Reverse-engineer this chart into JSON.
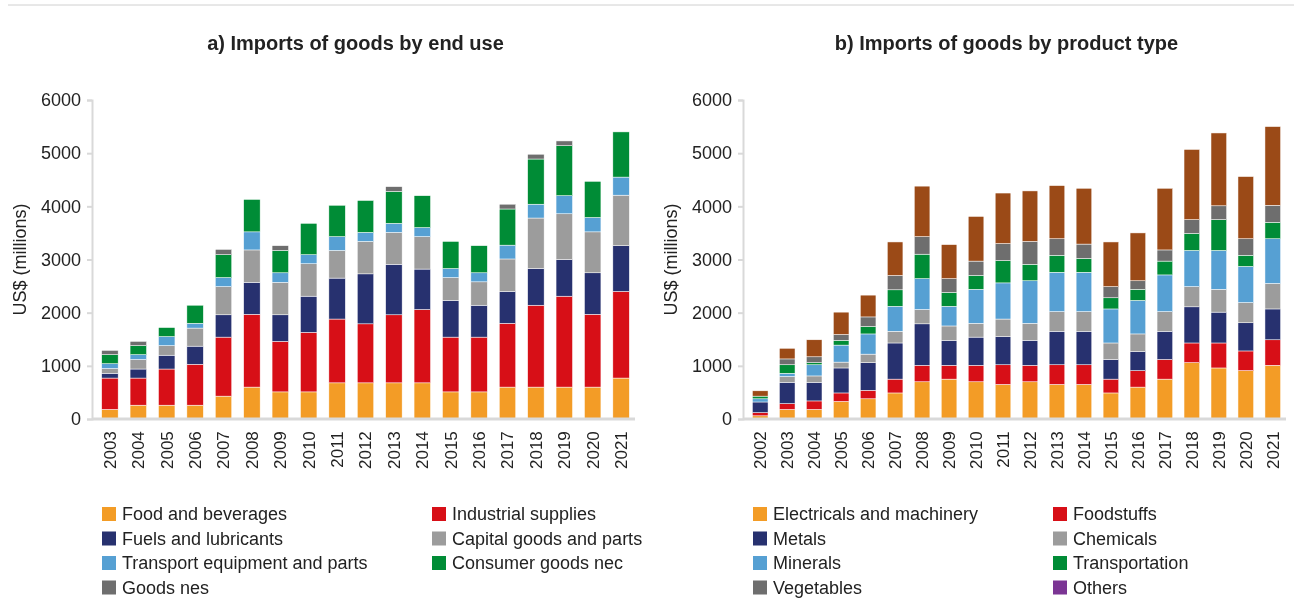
{
  "chart_data": [
    {
      "type": "bar",
      "title": "a) Imports of goods by end use",
      "ylabel": "US$ (millions)",
      "stacked": true,
      "legend": "bottom",
      "grid": false,
      "categories": [
        "2003",
        "2004",
        "2005",
        "2006",
        "2007",
        "2008",
        "2009",
        "2010",
        "2011",
        "2012",
        "2013",
        "2014",
        "2015",
        "2016",
        "2017",
        "2018",
        "2019",
        "2020",
        "2021"
      ],
      "ylim": [
        0,
        6000
      ],
      "yticks": [
        0,
        1000,
        2000,
        3000,
        4000,
        5000,
        6000
      ],
      "series": [
        {
          "name": "Food and beverages",
          "color": "#f39c26",
          "values": [
            180,
            260,
            260,
            260,
            430,
            600,
            510,
            510,
            680,
            680,
            680,
            680,
            510,
            510,
            600,
            600,
            600,
            600,
            770
          ]
        },
        {
          "name": "Industrial supplies",
          "color": "#d70f17",
          "values": [
            590,
            510,
            680,
            770,
            1110,
            1370,
            950,
            1120,
            1200,
            1110,
            1280,
            1380,
            1030,
            1030,
            1200,
            1540,
            1710,
            1370,
            1630
          ]
        },
        {
          "name": "Fuels and lubricants",
          "color": "#27316f",
          "values": [
            90,
            170,
            260,
            340,
            420,
            600,
            500,
            680,
            770,
            940,
            950,
            760,
            690,
            600,
            600,
            690,
            690,
            780,
            860
          ]
        },
        {
          "name": "Capital goods and parts",
          "color": "#9c9c9c",
          "values": [
            90,
            180,
            180,
            340,
            530,
            610,
            610,
            610,
            520,
            610,
            600,
            610,
            430,
            440,
            610,
            950,
            860,
            770,
            950
          ]
        },
        {
          "name": "Transport equipment and parts",
          "color": "#56a0d3",
          "values": [
            90,
            90,
            170,
            90,
            170,
            340,
            180,
            170,
            260,
            170,
            170,
            170,
            170,
            170,
            260,
            260,
            340,
            270,
            340
          ]
        },
        {
          "name": "Consumer goods nec",
          "color": "#008c36",
          "values": [
            170,
            170,
            170,
            340,
            430,
            610,
            420,
            590,
            590,
            600,
            600,
            600,
            510,
            510,
            680,
            850,
            940,
            680,
            850
          ]
        },
        {
          "name": "Goods nes",
          "color": "#6e6e6e",
          "values": [
            80,
            80,
            null,
            null,
            100,
            null,
            90,
            null,
            null,
            null,
            90,
            null,
            null,
            null,
            90,
            90,
            90,
            null,
            null
          ]
        }
      ]
    },
    {
      "type": "bar",
      "title": "b) Imports of goods by product type",
      "ylabel": "US$ (millions)",
      "stacked": true,
      "legend": "bottom",
      "grid": false,
      "categories": [
        "2002",
        "2003",
        "2004",
        "2005",
        "2006",
        "2007",
        "2008",
        "2009",
        "2010",
        "2011",
        "2012",
        "2013",
        "2014",
        "2015",
        "2016",
        "2017",
        "2018",
        "2019",
        "2020",
        "2021"
      ],
      "ylim": [
        0,
        6000
      ],
      "yticks": [
        0,
        1000,
        2000,
        3000,
        4000,
        5000,
        6000
      ],
      "series": [
        {
          "name": "Electricals and machinery",
          "color": "#f39c26",
          "values": [
            60,
            180,
            180,
            330,
            380,
            490,
            700,
            750,
            700,
            650,
            700,
            650,
            650,
            490,
            600,
            750,
            1060,
            960,
            910,
            1010
          ]
        },
        {
          "name": "Foodstuffs",
          "color": "#d70f17",
          "values": [
            60,
            110,
            160,
            160,
            160,
            260,
            310,
            260,
            310,
            370,
            310,
            370,
            370,
            260,
            310,
            370,
            370,
            470,
            370,
            480
          ]
        },
        {
          "name": "Metals",
          "color": "#27316f",
          "values": [
            200,
            400,
            350,
            470,
            520,
            680,
            780,
            470,
            530,
            530,
            470,
            630,
            630,
            370,
            360,
            530,
            680,
            580,
            530,
            580
          ]
        },
        {
          "name": "Chemicals",
          "color": "#9c9c9c",
          "values": [
            null,
            110,
            120,
            110,
            160,
            220,
            270,
            270,
            260,
            330,
            320,
            370,
            370,
            310,
            330,
            370,
            380,
            430,
            380,
            480
          ]
        },
        {
          "name": "Minerals",
          "color": "#56a0d3",
          "values": [
            60,
            60,
            210,
            320,
            380,
            470,
            580,
            370,
            640,
            680,
            800,
            740,
            740,
            640,
            630,
            690,
            680,
            730,
            680,
            840
          ]
        },
        {
          "name": "Transportation",
          "color": "#008c36",
          "values": [
            50,
            160,
            40,
            90,
            140,
            310,
            460,
            260,
            260,
            420,
            310,
            320,
            260,
            210,
            210,
            260,
            320,
            580,
            210,
            310
          ]
        },
        {
          "name": "Vegetables",
          "color": "#6e6e6e",
          "values": [
            null,
            110,
            110,
            110,
            180,
            270,
            330,
            260,
            270,
            320,
            430,
            310,
            270,
            210,
            160,
            210,
            260,
            260,
            310,
            320
          ]
        },
        {
          "color": "#9b4a17",
          "values": [
            100,
            200,
            320,
            420,
            410,
            630,
            950,
            640,
            840,
            950,
            950,
            1000,
            1050,
            840,
            900,
            1160,
            1320,
            1370,
            1170,
            1480
          ]
        },
        {
          "name": "Others",
          "color": "#7b3594",
          "values": [
            null,
            null,
            null,
            null,
            null,
            null,
            null,
            null,
            null,
            null,
            null,
            null,
            null,
            null,
            null,
            null,
            null,
            null,
            null,
            null
          ]
        }
      ]
    }
  ]
}
